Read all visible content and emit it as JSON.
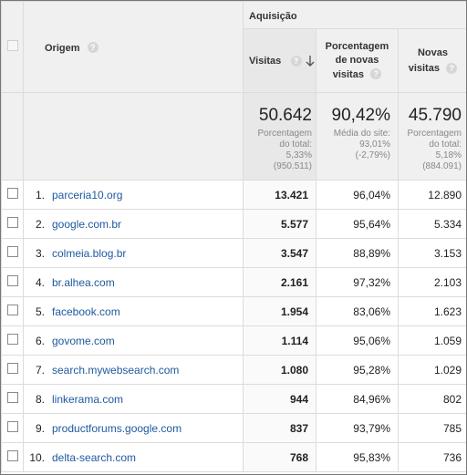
{
  "header": {
    "group_label": "Aquisição",
    "origin_label": "Origem",
    "visits_label": "Visitas",
    "pct_new_label_line1": "Porcentagem",
    "pct_new_label_line2": "de novas",
    "pct_new_label_line3": "visitas",
    "new_visits_label_line1": "Novas",
    "new_visits_label_line2": "visitas",
    "help_glyph": "?"
  },
  "summary": {
    "visits": {
      "value": "50.642",
      "line1": "Porcentagem",
      "line2": "do total:",
      "line3": "5,33%",
      "line4": "(950.511)"
    },
    "pct_new": {
      "value": "90,42%",
      "line1": "Média do site:",
      "line2": "93,01%",
      "line3": "(-2,79%)"
    },
    "new_visits": {
      "value": "45.790",
      "line1": "Porcentagem",
      "line2": "do total:",
      "line3": "5,18%",
      "line4": "(884.091)"
    }
  },
  "rows": [
    {
      "idx": "1.",
      "source": "parceria10.org",
      "visits": "13.421",
      "pct_new": "96,04%",
      "new_visits": "12.890"
    },
    {
      "idx": "2.",
      "source": "google.com.br",
      "visits": "5.577",
      "pct_new": "95,64%",
      "new_visits": "5.334"
    },
    {
      "idx": "3.",
      "source": "colmeia.blog.br",
      "visits": "3.547",
      "pct_new": "88,89%",
      "new_visits": "3.153"
    },
    {
      "idx": "4.",
      "source": "br.alhea.com",
      "visits": "2.161",
      "pct_new": "97,32%",
      "new_visits": "2.103"
    },
    {
      "idx": "5.",
      "source": "facebook.com",
      "visits": "1.954",
      "pct_new": "83,06%",
      "new_visits": "1.623"
    },
    {
      "idx": "6.",
      "source": "govome.com",
      "visits": "1.114",
      "pct_new": "95,06%",
      "new_visits": "1.059"
    },
    {
      "idx": "7.",
      "source": "search.mywebsearch.com",
      "visits": "1.080",
      "pct_new": "95,28%",
      "new_visits": "1.029"
    },
    {
      "idx": "8.",
      "source": "linkerama.com",
      "visits": "944",
      "pct_new": "84,96%",
      "new_visits": "802"
    },
    {
      "idx": "9.",
      "source": "productforums.google.com",
      "visits": "837",
      "pct_new": "93,79%",
      "new_visits": "785"
    },
    {
      "idx": "10.",
      "source": "delta-search.com",
      "visits": "768",
      "pct_new": "95,83%",
      "new_visits": "736"
    }
  ]
}
